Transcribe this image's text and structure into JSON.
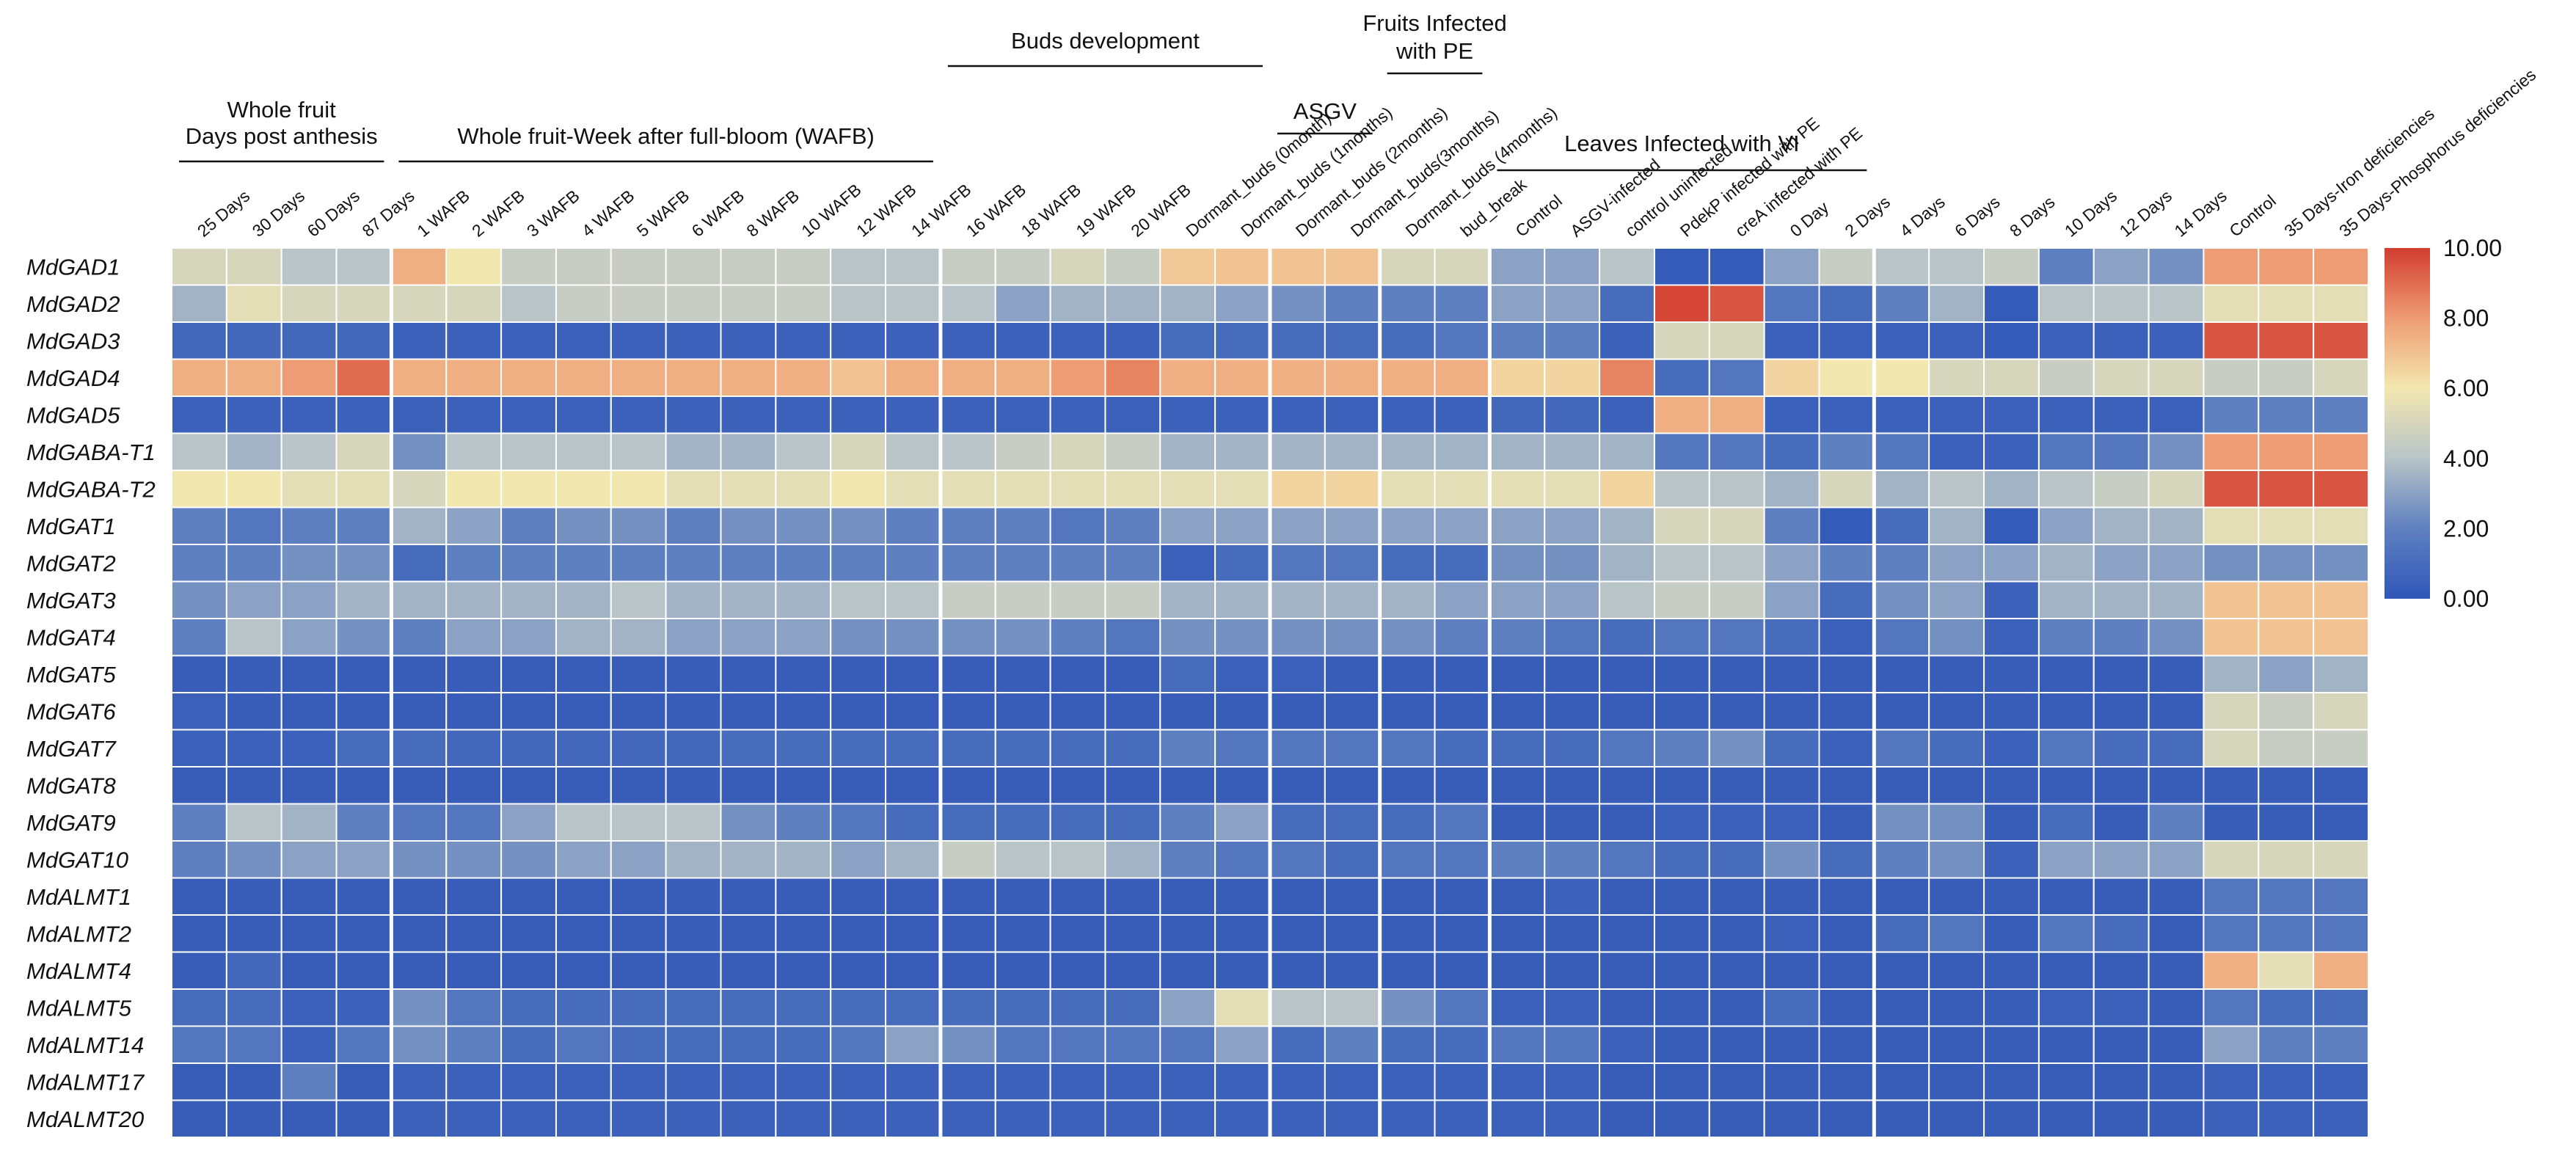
{
  "chart_data": {
    "type": "heatmap",
    "title": "",
    "value_range": [
      0,
      10
    ],
    "colorbar": {
      "ticks": [
        10,
        8,
        6,
        4,
        2,
        0
      ],
      "labels": [
        "10.00",
        "8.00",
        "6.00",
        "4.00",
        "2.00",
        "0.00"
      ],
      "colors": [
        "#3057b8",
        "#5f80c0",
        "#b8c4c8",
        "#f3e7b0",
        "#ee9c73",
        "#d23d30"
      ]
    },
    "groups": [
      {
        "label": "Whole fruit\nDays post anthesis",
        "start": 0,
        "end": 3
      },
      {
        "label": "Whole fruit-Week after full-bloom (WAFB)",
        "start": 4,
        "end": 13
      },
      {
        "label": "Buds development",
        "start": 14,
        "end": 19
      },
      {
        "label": "ASGV",
        "start": 20,
        "end": 21
      },
      {
        "label": "Fruits Infected\nwith PE",
        "start": 22,
        "end": 23
      },
      {
        "label": "Leaves Infected with VI",
        "start": 24,
        "end": 30
      },
      {
        "label": "",
        "start": 31,
        "end": 33
      }
    ],
    "columns": [
      "25 Days",
      "30 Days",
      "60 Days",
      "87 Days",
      "1 WAFB",
      "2 WAFB",
      "3 WAFB",
      "4 WAFB",
      "5 WAFB",
      "6 WAFB",
      "8 WAFB",
      "10 WAFB",
      "12 WAFB",
      "14 WAFB",
      "16 WAFB",
      "18 WAFB",
      "19 WAFB",
      "20 WAFB",
      "Dormant_buds (0month)",
      "Dormant_buds (1months)",
      "Dormant_buds (2months)",
      "Dormant_buds(3months)",
      "Dormant_buds (4months)",
      "bud_break",
      "Control",
      "ASGV-infected",
      "control uninfected",
      "PdekP infected with PE",
      "creA  infected with PE",
      "0 Day",
      "2 Days",
      "4 Days",
      "6 Days",
      "8 Days",
      "10 Days",
      "12 Days",
      "14 Days",
      "Control",
      "35 Days-Iron deficiencies",
      "35 Days-Phosphorus deficiencies"
    ],
    "rows": [
      "MdGAD1",
      "MdGAD2",
      "MdGAD3",
      "MdGAD4",
      "MdGAD5",
      "MdGABA-T1",
      "MdGABA-T2",
      "MdGAT1",
      "MdGAT2",
      "MdGAT3",
      "MdGAT4",
      "MdGAT5",
      "MdGAT6",
      "MdGAT7",
      "MdGAT8",
      "MdGAT9",
      "MdGAT10",
      "MdALMT1",
      "MdALMT2",
      "MdALMT4",
      "MdALMT5",
      "MdALMT14",
      "MdALMT17",
      "MdALMT20"
    ],
    "values": [
      [
        5.0,
        5.0,
        4.0,
        4.0,
        7.5,
        6.0,
        4.5,
        4.5,
        4.5,
        4.5,
        4.5,
        4.5,
        4.0,
        4.0,
        4.5,
        4.5,
        5.0,
        4.5,
        6.8,
        7.0,
        7.0,
        7.0,
        5.0,
        5.0,
        3.0,
        3.0,
        4.0,
        0.2,
        0.2,
        3.0,
        4.5,
        4.0,
        4.0,
        4.5,
        2.0,
        3.0,
        2.5,
        8.0,
        8.0,
        8.0
      ],
      [
        3.5,
        5.5,
        5.0,
        5.0,
        5.0,
        5.0,
        4.0,
        4.5,
        4.5,
        4.5,
        4.5,
        4.5,
        4.0,
        4.0,
        4.0,
        3.0,
        3.5,
        3.5,
        3.5,
        3.0,
        2.5,
        2.0,
        2.0,
        2.0,
        3.0,
        3.0,
        1.0,
        9.8,
        9.5,
        1.5,
        1.0,
        2.0,
        3.5,
        0.2,
        4.0,
        4.0,
        4.0,
        5.5,
        5.5,
        5.5
      ],
      [
        0.8,
        0.8,
        0.8,
        0.8,
        0.5,
        0.5,
        0.5,
        0.5,
        0.5,
        0.5,
        0.5,
        0.5,
        0.5,
        0.5,
        0.5,
        0.5,
        0.5,
        0.5,
        1.0,
        1.0,
        1.0,
        1.0,
        1.0,
        1.5,
        2.0,
        2.0,
        0.5,
        5.0,
        5.0,
        0.5,
        0.5,
        0.5,
        0.5,
        0.2,
        0.5,
        0.5,
        0.5,
        9.5,
        9.5,
        9.5
      ],
      [
        7.5,
        7.5,
        8.0,
        9.0,
        7.5,
        7.5,
        7.5,
        7.5,
        7.5,
        7.5,
        7.5,
        7.5,
        7.0,
        7.5,
        7.5,
        7.5,
        8.0,
        8.5,
        7.5,
        7.5,
        7.5,
        7.5,
        7.5,
        7.5,
        6.5,
        6.5,
        8.5,
        1.0,
        1.5,
        6.5,
        6.0,
        6.0,
        5.0,
        5.0,
        4.5,
        5.0,
        5.0,
        4.5,
        4.5,
        5.0
      ],
      [
        0.5,
        0.5,
        0.5,
        0.5,
        0.5,
        0.5,
        0.5,
        0.5,
        0.5,
        0.5,
        0.5,
        0.5,
        0.5,
        0.5,
        0.5,
        0.5,
        0.5,
        0.5,
        0.5,
        0.5,
        0.5,
        0.5,
        0.5,
        0.5,
        0.8,
        0.8,
        0.5,
        7.5,
        7.5,
        0.5,
        0.5,
        0.5,
        0.5,
        0.5,
        0.5,
        0.5,
        0.5,
        2.0,
        2.0,
        2.0
      ],
      [
        4.0,
        3.5,
        4.0,
        5.0,
        2.5,
        4.0,
        4.0,
        4.0,
        4.0,
        3.5,
        3.5,
        4.0,
        5.0,
        4.0,
        4.0,
        4.5,
        5.0,
        4.5,
        3.5,
        3.5,
        3.5,
        3.5,
        3.5,
        3.5,
        3.5,
        3.5,
        3.5,
        1.5,
        1.5,
        1.0,
        2.0,
        1.5,
        0.5,
        0.5,
        1.5,
        1.5,
        2.5,
        8.0,
        8.0,
        8.0
      ],
      [
        6.0,
        6.0,
        5.5,
        5.5,
        5.0,
        6.0,
        6.0,
        6.0,
        6.0,
        5.5,
        5.5,
        5.5,
        6.0,
        5.5,
        5.5,
        5.5,
        5.5,
        5.5,
        5.5,
        5.5,
        6.5,
        6.5,
        5.5,
        5.5,
        5.5,
        5.5,
        6.5,
        4.0,
        4.0,
        3.5,
        5.0,
        3.5,
        4.0,
        3.5,
        4.0,
        4.5,
        5.0,
        9.5,
        9.5,
        9.5
      ],
      [
        2.0,
        1.5,
        2.0,
        2.0,
        3.5,
        3.0,
        2.0,
        2.5,
        2.5,
        2.0,
        2.5,
        2.5,
        2.5,
        2.0,
        2.0,
        2.0,
        1.5,
        2.0,
        3.0,
        3.0,
        3.0,
        3.0,
        3.0,
        3.0,
        3.0,
        3.0,
        3.5,
        5.0,
        5.0,
        2.0,
        0.2,
        1.0,
        3.5,
        0.2,
        3.0,
        3.5,
        3.5,
        5.5,
        5.5,
        5.5
      ],
      [
        2.0,
        2.0,
        2.5,
        2.5,
        1.0,
        2.0,
        2.0,
        2.0,
        2.0,
        2.0,
        2.0,
        2.0,
        2.0,
        2.0,
        2.0,
        2.0,
        2.0,
        2.0,
        0.5,
        1.0,
        1.5,
        1.5,
        1.0,
        1.0,
        2.5,
        2.5,
        3.5,
        4.0,
        4.0,
        3.0,
        2.0,
        2.0,
        3.0,
        3.0,
        3.5,
        3.0,
        3.0,
        2.5,
        2.5,
        2.5
      ],
      [
        2.5,
        3.0,
        3.0,
        3.5,
        3.5,
        3.5,
        3.5,
        3.5,
        4.0,
        3.5,
        3.5,
        3.5,
        4.0,
        4.0,
        4.5,
        4.5,
        4.5,
        4.5,
        3.5,
        3.5,
        3.5,
        3.5,
        3.5,
        3.0,
        3.0,
        3.0,
        4.0,
        4.5,
        4.5,
        3.0,
        1.0,
        2.5,
        3.0,
        0.5,
        3.5,
        3.5,
        3.5,
        7.0,
        7.0,
        7.0
      ],
      [
        2.0,
        4.0,
        3.0,
        2.5,
        2.0,
        3.0,
        3.0,
        3.5,
        3.5,
        3.0,
        3.0,
        3.0,
        2.5,
        2.5,
        2.5,
        2.5,
        2.0,
        1.5,
        2.5,
        2.5,
        2.5,
        2.5,
        2.5,
        2.0,
        2.0,
        1.5,
        1.0,
        1.5,
        1.5,
        1.0,
        0.5,
        1.5,
        2.5,
        0.5,
        2.0,
        2.0,
        2.5,
        7.0,
        7.0,
        7.0
      ],
      [
        0.3,
        0.3,
        0.3,
        0.3,
        0.3,
        0.3,
        0.3,
        0.3,
        0.3,
        0.3,
        0.3,
        0.3,
        0.3,
        0.3,
        0.3,
        0.3,
        0.3,
        0.3,
        1.0,
        0.5,
        0.5,
        0.3,
        0.3,
        0.3,
        0.3,
        0.3,
        0.3,
        0.3,
        0.3,
        0.3,
        0.3,
        0.3,
        0.3,
        0.3,
        0.3,
        0.3,
        0.3,
        3.5,
        3.0,
        3.5
      ],
      [
        0.5,
        0.3,
        0.3,
        0.3,
        0.3,
        0.3,
        0.3,
        0.3,
        0.3,
        0.3,
        0.3,
        0.3,
        0.3,
        0.3,
        0.3,
        0.3,
        0.3,
        0.3,
        0.3,
        0.3,
        0.3,
        0.3,
        0.3,
        0.3,
        0.3,
        0.3,
        0.3,
        0.3,
        0.3,
        0.3,
        0.3,
        0.3,
        0.3,
        0.3,
        0.3,
        0.3,
        0.3,
        5.0,
        4.5,
        5.0
      ],
      [
        0.5,
        0.5,
        0.5,
        1.0,
        1.0,
        0.8,
        0.8,
        0.8,
        0.8,
        0.8,
        1.0,
        1.0,
        1.0,
        1.0,
        1.0,
        1.0,
        1.0,
        1.0,
        2.0,
        1.5,
        1.5,
        1.5,
        1.5,
        1.0,
        1.0,
        1.0,
        1.5,
        2.0,
        2.5,
        1.0,
        0.5,
        1.5,
        1.0,
        0.5,
        1.5,
        1.0,
        1.0,
        5.0,
        4.5,
        4.5
      ],
      [
        0.3,
        0.3,
        0.3,
        0.3,
        0.3,
        0.3,
        0.3,
        0.3,
        0.3,
        0.3,
        0.3,
        0.3,
        0.3,
        0.3,
        0.3,
        0.3,
        0.3,
        0.3,
        0.3,
        0.3,
        0.3,
        0.3,
        0.3,
        0.3,
        0.3,
        0.3,
        0.3,
        0.3,
        0.3,
        0.3,
        0.3,
        0.3,
        0.3,
        0.3,
        0.3,
        0.3,
        0.3,
        0.3,
        0.3,
        0.3
      ],
      [
        2.0,
        4.0,
        3.5,
        2.0,
        1.5,
        1.5,
        3.0,
        4.0,
        4.0,
        4.0,
        2.5,
        2.0,
        1.5,
        1.0,
        1.0,
        1.0,
        1.0,
        1.0,
        2.0,
        3.0,
        1.0,
        1.0,
        1.0,
        1.5,
        0.3,
        0.3,
        0.3,
        0.5,
        0.5,
        0.5,
        0.3,
        2.5,
        2.5,
        0.3,
        1.0,
        0.3,
        2.0,
        0.3,
        0.3,
        0.3
      ],
      [
        2.0,
        2.5,
        3.0,
        3.0,
        2.5,
        2.5,
        2.5,
        3.0,
        3.0,
        3.5,
        3.5,
        3.5,
        3.0,
        3.5,
        4.5,
        4.0,
        4.0,
        3.5,
        2.0,
        1.5,
        1.5,
        1.0,
        1.5,
        1.5,
        2.0,
        2.0,
        1.5,
        1.0,
        1.0,
        2.5,
        1.0,
        2.0,
        2.5,
        0.5,
        3.0,
        3.0,
        3.0,
        5.0,
        5.0,
        5.0
      ],
      [
        0.3,
        0.3,
        0.3,
        0.3,
        0.3,
        0.3,
        0.3,
        0.3,
        0.3,
        0.3,
        0.3,
        0.3,
        0.3,
        0.3,
        0.3,
        0.3,
        0.3,
        0.3,
        0.3,
        0.3,
        0.3,
        0.3,
        0.3,
        0.3,
        0.3,
        0.5,
        0.3,
        0.3,
        0.3,
        0.3,
        0.3,
        0.3,
        0.3,
        0.3,
        0.3,
        0.3,
        0.3,
        1.5,
        1.5,
        1.5
      ],
      [
        0.3,
        0.3,
        0.3,
        0.3,
        0.3,
        0.3,
        0.3,
        0.3,
        0.3,
        0.3,
        0.3,
        0.3,
        0.3,
        0.3,
        0.3,
        0.3,
        0.3,
        0.3,
        0.3,
        0.3,
        0.3,
        0.3,
        0.3,
        0.3,
        0.3,
        0.3,
        0.3,
        0.3,
        0.3,
        0.5,
        0.3,
        1.0,
        1.5,
        0.3,
        1.5,
        1.0,
        0.3,
        1.5,
        1.5,
        1.5
      ],
      [
        0.3,
        0.8,
        0.3,
        0.3,
        0.3,
        0.3,
        0.3,
        0.3,
        0.3,
        0.3,
        0.3,
        0.3,
        0.3,
        0.3,
        0.3,
        0.3,
        0.3,
        0.3,
        0.3,
        0.3,
        0.3,
        0.3,
        0.3,
        0.3,
        0.3,
        0.3,
        0.3,
        0.3,
        0.3,
        0.3,
        0.3,
        0.3,
        0.3,
        0.3,
        0.3,
        0.3,
        0.3,
        7.5,
        5.5,
        7.5
      ],
      [
        1.0,
        1.0,
        0.5,
        0.5,
        2.5,
        1.5,
        1.0,
        1.0,
        1.0,
        1.0,
        1.0,
        1.0,
        1.0,
        1.0,
        1.0,
        1.0,
        1.0,
        1.0,
        3.0,
        5.5,
        4.0,
        4.0,
        2.5,
        1.5,
        0.5,
        0.5,
        0.3,
        0.3,
        0.3,
        1.0,
        0.3,
        0.3,
        0.3,
        0.3,
        0.5,
        0.5,
        0.3,
        1.5,
        1.0,
        1.0
      ],
      [
        1.5,
        1.5,
        0.5,
        1.5,
        2.5,
        2.0,
        1.0,
        1.5,
        1.0,
        1.0,
        1.0,
        1.0,
        1.5,
        3.0,
        2.5,
        1.5,
        1.5,
        1.5,
        1.5,
        3.0,
        1.0,
        2.0,
        1.0,
        1.0,
        1.5,
        1.5,
        0.5,
        0.3,
        0.3,
        0.3,
        0.3,
        0.3,
        0.3,
        0.3,
        0.3,
        0.3,
        0.3,
        3.0,
        2.0,
        2.0
      ],
      [
        0.3,
        0.3,
        2.0,
        0.3,
        0.5,
        0.5,
        0.5,
        0.5,
        0.5,
        0.5,
        0.5,
        0.5,
        0.5,
        0.5,
        0.5,
        0.5,
        0.5,
        0.5,
        0.5,
        0.5,
        0.5,
        0.5,
        0.5,
        0.5,
        0.5,
        0.5,
        0.3,
        0.3,
        0.3,
        0.3,
        0.3,
        0.3,
        0.3,
        0.3,
        0.3,
        0.3,
        0.3,
        0.5,
        0.5,
        0.5
      ],
      [
        0.3,
        0.3,
        0.3,
        0.3,
        0.5,
        0.5,
        0.5,
        0.5,
        0.5,
        0.5,
        0.5,
        0.5,
        0.5,
        0.5,
        0.5,
        0.5,
        0.5,
        0.5,
        0.5,
        0.5,
        0.5,
        0.5,
        0.5,
        0.5,
        0.5,
        0.5,
        0.3,
        0.3,
        0.3,
        0.3,
        0.3,
        0.3,
        0.3,
        0.3,
        0.3,
        0.3,
        0.3,
        0.5,
        0.5,
        0.5
      ]
    ]
  }
}
